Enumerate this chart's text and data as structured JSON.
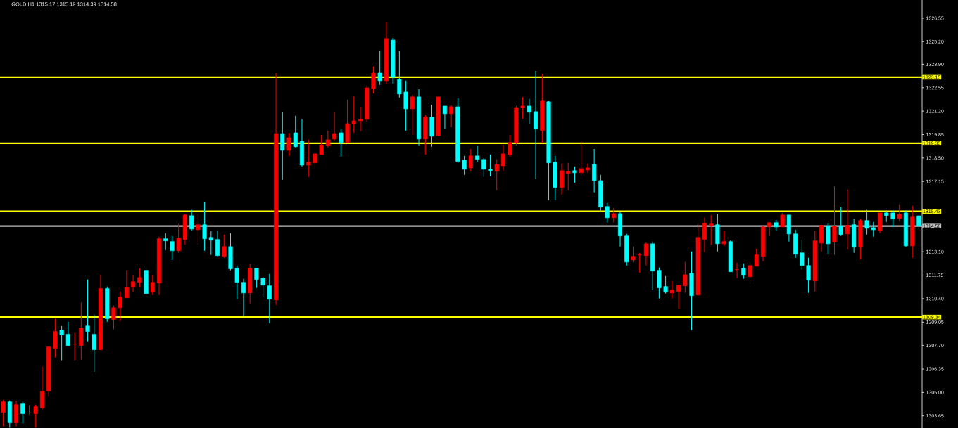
{
  "chart_data": {
    "type": "candlestick",
    "title": "GOLD,H1  1315.17 1315.19 1314.39 1314.58",
    "categories": [
      null,
      null,
      null,
      null,
      null,
      null,
      null,
      null,
      null,
      null,
      null,
      null,
      null,
      null,
      null,
      null,
      null,
      null,
      null,
      null,
      null,
      null,
      null,
      null,
      null,
      null,
      null,
      null,
      null,
      null,
      null,
      null,
      null,
      null,
      null,
      null,
      null,
      null,
      null,
      null,
      null,
      null,
      null,
      null,
      null,
      null,
      null,
      null,
      null,
      null,
      null,
      null,
      null,
      null,
      null,
      null,
      null,
      null,
      null,
      null,
      null,
      null,
      null,
      null,
      null,
      null,
      null,
      null,
      null,
      null,
      null,
      null,
      null,
      null,
      null,
      null,
      null,
      null,
      null,
      null,
      null,
      null,
      null,
      null,
      null,
      null,
      null,
      null,
      null,
      null,
      null,
      null,
      null,
      null,
      null,
      null,
      null,
      null,
      null,
      null,
      null,
      null,
      null,
      null,
      null,
      null,
      null,
      null,
      null,
      null,
      null,
      null,
      null,
      null,
      null,
      null,
      null,
      null,
      null,
      null,
      null,
      null,
      null,
      null,
      null,
      null,
      null,
      null,
      null,
      null,
      null,
      null,
      null,
      null,
      null,
      null,
      null,
      null,
      null,
      null,
      null,
      null
    ],
    "ohlc": [
      [
        1303.86,
        1304.58,
        1303.05,
        1304.46
      ],
      [
        1304.46,
        1304.54,
        1302.97,
        1303.25
      ],
      [
        1303.25,
        1304.54,
        1303.05,
        1304.3
      ],
      [
        1304.34,
        1304.46,
        1303.21,
        1303.78
      ],
      [
        1303.82,
        1304.26,
        1303.73,
        1303.82
      ],
      [
        1303.78,
        1304.3,
        1302.97,
        1304.18
      ],
      [
        1304.1,
        1306.49,
        1304.02,
        1305.07
      ],
      [
        1305.07,
        1307.66,
        1304.75,
        1307.62
      ],
      [
        1307.54,
        1309.24,
        1307.01,
        1308.51
      ],
      [
        1308.59,
        1308.83,
        1306.85,
        1308.31
      ],
      [
        1308.35,
        1309.07,
        1307.66,
        1307.7
      ],
      [
        1307.78,
        1308.43,
        1306.85,
        1307.78
      ],
      [
        1307.7,
        1310.17,
        1306.89,
        1308.71
      ],
      [
        1308.83,
        1311.5,
        1307.94,
        1308.51
      ],
      [
        1308.35,
        1309.48,
        1306.16,
        1307.46
      ],
      [
        1307.46,
        1311.78,
        1307.46,
        1310.98
      ],
      [
        1310.98,
        1311.1,
        1309.07,
        1309.24
      ],
      [
        1309.2,
        1310.0,
        1308.63,
        1309.88
      ],
      [
        1309.88,
        1310.81,
        1309.11,
        1310.49
      ],
      [
        1310.45,
        1312.03,
        1310.45,
        1311.06
      ],
      [
        1311.06,
        1311.74,
        1310.77,
        1311.38
      ],
      [
        1311.34,
        1312.15,
        1311.06,
        1311.62
      ],
      [
        1312.03,
        1312.19,
        1310.69,
        1310.69
      ],
      [
        1310.77,
        1311.74,
        1310.61,
        1311.34
      ],
      [
        1311.3,
        1313.97,
        1310.61,
        1313.85
      ],
      [
        1313.85,
        1314.17,
        1313.2,
        1313.73
      ],
      [
        1313.69,
        1314.01,
        1312.63,
        1313.16
      ],
      [
        1313.16,
        1314.7,
        1313.04,
        1313.89
      ],
      [
        1313.81,
        1315.3,
        1313.52,
        1315.22
      ],
      [
        1315.18,
        1315.51,
        1314.33,
        1314.41
      ],
      [
        1314.37,
        1315.3,
        1313.52,
        1314.66
      ],
      [
        1314.66,
        1315.95,
        1313.16,
        1313.85
      ],
      [
        1313.93,
        1314.29,
        1312.92,
        1313.77
      ],
      [
        1313.81,
        1314.33,
        1312.84,
        1312.88
      ],
      [
        1312.84,
        1314.09,
        1312.75,
        1313.4
      ],
      [
        1313.4,
        1314.17,
        1312.03,
        1312.11
      ],
      [
        1312.15,
        1312.31,
        1310.37,
        1311.34
      ],
      [
        1311.34,
        1311.54,
        1309.4,
        1310.73
      ],
      [
        1310.73,
        1312.39,
        1310.13,
        1312.15
      ],
      [
        1312.15,
        1312.15,
        1311.02,
        1311.5
      ],
      [
        1311.58,
        1311.66,
        1310.49,
        1311.18
      ],
      [
        1311.14,
        1311.82,
        1308.99,
        1310.37
      ],
      [
        1310.33,
        1323.39,
        1310.04,
        1319.91
      ],
      [
        1319.91,
        1321.13,
        1317.25,
        1318.94
      ],
      [
        1318.94,
        1319.95,
        1318.62,
        1319.67
      ],
      [
        1319.95,
        1320.93,
        1319.11,
        1319.15
      ],
      [
        1319.47,
        1320.72,
        1318.01,
        1318.09
      ],
      [
        1318.09,
        1319.55,
        1317.41,
        1318.26
      ],
      [
        1318.22,
        1318.86,
        1317.89,
        1318.74
      ],
      [
        1318.7,
        1319.83,
        1318.7,
        1319.23
      ],
      [
        1319.19,
        1320.08,
        1319.11,
        1319.55
      ],
      [
        1319.59,
        1321.13,
        1319.51,
        1319.91
      ],
      [
        1319.95,
        1320.16,
        1318.58,
        1319.39
      ],
      [
        1319.39,
        1321.86,
        1319.35,
        1320.48
      ],
      [
        1320.48,
        1322.06,
        1319.95,
        1320.64
      ],
      [
        1320.64,
        1321.45,
        1320.04,
        1320.72
      ],
      [
        1320.72,
        1322.67,
        1320.6,
        1322.54
      ],
      [
        1322.5,
        1323.76,
        1322.22,
        1323.39
      ],
      [
        1323.39,
        1324.69,
        1322.71,
        1322.95
      ],
      [
        1322.95,
        1326.31,
        1322.75,
        1325.38
      ],
      [
        1325.29,
        1325.42,
        1322.79,
        1323.15
      ],
      [
        1323.03,
        1324.65,
        1321.98,
        1322.18
      ],
      [
        1322.3,
        1322.95,
        1320.08,
        1321.33
      ],
      [
        1321.33,
        1322.14,
        1319.83,
        1322.02
      ],
      [
        1322.02,
        1322.46,
        1319.19,
        1319.59
      ],
      [
        1319.59,
        1320.97,
        1318.7,
        1320.85
      ],
      [
        1320.85,
        1321.57,
        1319.15,
        1319.75
      ],
      [
        1319.79,
        1322.02,
        1319.75,
        1322.02
      ],
      [
        1321.49,
        1321.49,
        1320.16,
        1321.05
      ],
      [
        1321.05,
        1321.53,
        1320.28,
        1321.45
      ],
      [
        1321.45,
        1321.94,
        1318.22,
        1318.3
      ],
      [
        1318.38,
        1318.62,
        1317.53,
        1317.85
      ],
      [
        1317.93,
        1319.02,
        1317.73,
        1318.62
      ],
      [
        1318.62,
        1319.19,
        1318.26,
        1318.42
      ],
      [
        1318.42,
        1318.5,
        1317.41,
        1317.85
      ],
      [
        1317.85,
        1318.7,
        1317.45,
        1317.77
      ],
      [
        1317.73,
        1318.42,
        1316.64,
        1318.13
      ],
      [
        1318.05,
        1319.23,
        1317.77,
        1318.74
      ],
      [
        1318.7,
        1319.83,
        1318.58,
        1319.39
      ],
      [
        1319.35,
        1321.49,
        1319.19,
        1321.41
      ],
      [
        1321.41,
        1322.02,
        1320.76,
        1321.49
      ],
      [
        1321.49,
        1321.9,
        1320.48,
        1321.13
      ],
      [
        1321.17,
        1323.51,
        1317.29,
        1320.16
      ],
      [
        1320.08,
        1323.35,
        1319.35,
        1321.78
      ],
      [
        1321.74,
        1321.78,
        1316.07,
        1318.22
      ],
      [
        1318.26,
        1318.62,
        1316.07,
        1316.8
      ],
      [
        1316.8,
        1318.18,
        1316.4,
        1317.77
      ],
      [
        1317.61,
        1318.22,
        1316.64,
        1317.73
      ],
      [
        1317.77,
        1318.01,
        1317.08,
        1317.65
      ],
      [
        1317.65,
        1319.47,
        1317.49,
        1317.89
      ],
      [
        1317.81,
        1318.18,
        1317.65,
        1317.93
      ],
      [
        1318.13,
        1319.02,
        1316.52,
        1317.2
      ],
      [
        1317.2,
        1317.53,
        1315.42,
        1315.67
      ],
      [
        1315.71,
        1315.91,
        1314.78,
        1315.06
      ],
      [
        1315.06,
        1315.63,
        1314.78,
        1315.3
      ],
      [
        1315.3,
        1315.4,
        1313.4,
        1314.01
      ],
      [
        1314.01,
        1314.13,
        1312.31,
        1312.51
      ],
      [
        1312.63,
        1313.4,
        1312.51,
        1312.84
      ],
      [
        1312.92,
        1313.04,
        1311.9,
        1312.92
      ],
      [
        1312.88,
        1313.64,
        1312.31,
        1313.56
      ],
      [
        1313.56,
        1313.69,
        1310.89,
        1311.99
      ],
      [
        1312.03,
        1312.19,
        1310.41,
        1311.02
      ],
      [
        1311.1,
        1311.7,
        1310.69,
        1310.77
      ],
      [
        1310.73,
        1311.42,
        1310.41,
        1310.89
      ],
      [
        1310.81,
        1311.18,
        1309.8,
        1311.18
      ],
      [
        1311.14,
        1312.51,
        1310.73,
        1311.78
      ],
      [
        1311.86,
        1313.12,
        1308.59,
        1310.57
      ],
      [
        1310.61,
        1314.7,
        1310.57,
        1313.93
      ],
      [
        1313.81,
        1315.06,
        1313.08,
        1314.74
      ],
      [
        1314.62,
        1315.22,
        1313.48,
        1314.7
      ],
      [
        1314.66,
        1315.3,
        1313.12,
        1313.56
      ],
      [
        1313.56,
        1314.33,
        1313.44,
        1313.69
      ],
      [
        1313.69,
        1313.77,
        1311.95,
        1311.95
      ],
      [
        1312.07,
        1312.47,
        1311.58,
        1312.07
      ],
      [
        1312.15,
        1312.43,
        1311.54,
        1311.74
      ],
      [
        1311.66,
        1312.51,
        1311.26,
        1312.31
      ],
      [
        1312.27,
        1313.28,
        1312.27,
        1312.92
      ],
      [
        1312.84,
        1314.58,
        1312.55,
        1314.53
      ],
      [
        1314.53,
        1314.78,
        1314.01,
        1314.78
      ],
      [
        1314.78,
        1314.94,
        1314.33,
        1314.53
      ],
      [
        1314.53,
        1315.34,
        1314.53,
        1315.22
      ],
      [
        1315.22,
        1315.22,
        1313.69,
        1314.13
      ],
      [
        1314.13,
        1314.37,
        1312.75,
        1312.96
      ],
      [
        1313.04,
        1313.81,
        1312.07,
        1312.31
      ],
      [
        1312.31,
        1312.75,
        1310.73,
        1311.46
      ],
      [
        1311.42,
        1314.33,
        1310.81,
        1313.73
      ],
      [
        1313.6,
        1314.66,
        1313.12,
        1314.62
      ],
      [
        1314.58,
        1314.74,
        1312.96,
        1313.56
      ],
      [
        1313.65,
        1316.88,
        1312.92,
        1314.58
      ],
      [
        1314.58,
        1315.67,
        1314.01,
        1314.09
      ],
      [
        1314.13,
        1316.68,
        1313.24,
        1314.62
      ],
      [
        1314.66,
        1314.98,
        1313.04,
        1313.36
      ],
      [
        1313.36,
        1314.98,
        1312.67,
        1314.9
      ],
      [
        1314.9,
        1315.51,
        1314.09,
        1314.45
      ],
      [
        1314.49,
        1314.82,
        1313.97,
        1314.37
      ],
      [
        1314.33,
        1315.34,
        1314.17,
        1315.34
      ],
      [
        1315.34,
        1315.47,
        1314.82,
        1315.18
      ],
      [
        1315.34,
        1315.47,
        1314.53,
        1314.98
      ],
      [
        1315.02,
        1315.83,
        1314.86,
        1315.26
      ],
      [
        1315.34,
        1315.47,
        1313.36,
        1313.44
      ],
      [
        1313.44,
        1315.75,
        1312.75,
        1315.1
      ],
      [
        1315.17,
        1315.19,
        1314.39,
        1314.58
      ]
    ],
    "colors": [
      "#ff0000",
      "#00ffff",
      "#ff0000",
      "#00ffff",
      "#ff0000",
      "#ff0000",
      "#ff0000",
      "#ff0000",
      "#ff0000",
      "#00ffff",
      "#00ffff",
      "#ff0000",
      "#ff0000",
      "#00ffff",
      "#00ffff",
      "#ff0000",
      "#00ffff",
      "#ff0000",
      "#ff0000",
      "#ff0000",
      "#ff0000",
      "#ff0000",
      "#00ffff",
      "#ff0000",
      "#ff0000",
      "#00ffff",
      "#00ffff",
      "#ff0000",
      "#ff0000",
      "#00ffff",
      "#ff0000",
      "#00ffff",
      "#00ffff",
      "#00ffff",
      "#ff0000",
      "#00ffff",
      "#00ffff",
      "#00ffff",
      "#ff0000",
      "#00ffff",
      "#00ffff",
      "#00ffff",
      "#ff0000",
      "#00ffff",
      "#ff0000",
      "#00ffff",
      "#00ffff",
      "#ff0000",
      "#ff0000",
      "#ff0000",
      "#ff0000",
      "#ff0000",
      "#00ffff",
      "#ff0000",
      "#ff0000",
      "#ff0000",
      "#ff0000",
      "#ff0000",
      "#00ffff",
      "#ff0000",
      "#00ffff",
      "#00ffff",
      "#00ffff",
      "#ff0000",
      "#00ffff",
      "#ff0000",
      "#00ffff",
      "#ff0000",
      "#00ffff",
      "#ff0000",
      "#00ffff",
      "#00ffff",
      "#ff0000",
      "#00ffff",
      "#00ffff",
      "#00ffff",
      "#ff0000",
      "#ff0000",
      "#ff0000",
      "#ff0000",
      "#ff0000",
      "#00ffff",
      "#00ffff",
      "#ff0000",
      "#00ffff",
      "#00ffff",
      "#ff0000",
      "#ff0000",
      "#00ffff",
      "#ff0000",
      "#ff0000",
      "#00ffff",
      "#00ffff",
      "#00ffff",
      "#ff0000",
      "#00ffff",
      "#00ffff",
      "#ff0000",
      "#ff0000",
      "#ff0000",
      "#00ffff",
      "#00ffff",
      "#00ffff",
      "#ff0000",
      "#ff0000",
      "#ff0000",
      "#00ffff",
      "#ff0000",
      "#ff0000",
      "#ff0000",
      "#00ffff",
      "#ff0000",
      "#00ffff",
      "#ff0000",
      "#00ffff",
      "#ff0000",
      "#ff0000",
      "#ff0000",
      "#ff0000",
      "#00ffff",
      "#ff0000",
      "#00ffff",
      "#00ffff",
      "#00ffff",
      "#00ffff",
      "#ff0000",
      "#ff0000",
      "#00ffff",
      "#ff0000",
      "#00ffff",
      "#ff0000",
      "#00ffff",
      "#ff0000",
      "#00ffff",
      "#00ffff",
      "#ff0000",
      "#00ffff",
      "#00ffff",
      "#ff0000",
      "#00ffff",
      "#ff0000",
      "#00ffff"
    ],
    "ylim": [
      1302.95,
      1327.6
    ],
    "yticks": [
      {
        "value": 1303.65,
        "label": "1303.65"
      },
      {
        "value": 1305.0,
        "label": "1305.00"
      },
      {
        "value": 1306.35,
        "label": "1306.35"
      },
      {
        "value": 1307.7,
        "label": "1307.70"
      },
      {
        "value": 1309.05,
        "label": "1309.05"
      },
      {
        "value": 1310.4,
        "label": "1310.40"
      },
      {
        "value": 1311.75,
        "label": "1311.75"
      },
      {
        "value": 1313.1,
        "label": "1313.10"
      },
      {
        "value": 1317.15,
        "label": "1317.15"
      },
      {
        "value": 1318.5,
        "label": "1318.50"
      },
      {
        "value": 1319.85,
        "label": "1319.85"
      },
      {
        "value": 1321.2,
        "label": "1321.20"
      },
      {
        "value": 1322.55,
        "label": "1322.55"
      },
      {
        "value": 1323.9,
        "label": "1323.90"
      },
      {
        "value": 1325.2,
        "label": "1325.20"
      },
      {
        "value": 1326.55,
        "label": "1326.55"
      }
    ],
    "tick_labels": "y",
    "ref_lines": [
      {
        "axis": "y",
        "value": 1323.15,
        "label": "1323.15",
        "color": "#ffff00"
      },
      {
        "axis": "y",
        "value": 1319.35,
        "label": "1319.35",
        "color": "#ffff00"
      },
      {
        "axis": "y",
        "value": 1315.43,
        "label": "1315.43",
        "color": "#ffff00"
      },
      {
        "axis": "y",
        "value": 1309.34,
        "label": "1309.34",
        "color": "#ffff00"
      },
      {
        "axis": "y",
        "value": 1314.58,
        "label": "1314.58",
        "color": "#c0c0c0"
      }
    ]
  }
}
